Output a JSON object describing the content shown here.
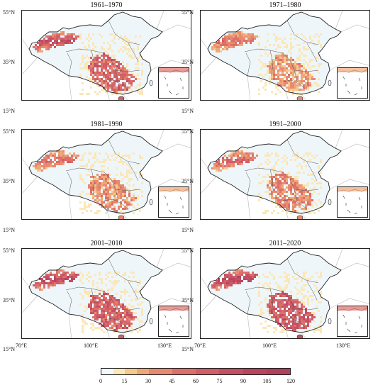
{
  "panels": [
    {
      "title": "1961–1970",
      "level": 0.75
    },
    {
      "title": "1971–1980",
      "level": 0.45
    },
    {
      "title": "1981–1990",
      "level": 0.5
    },
    {
      "title": "1991–2000",
      "level": 0.55
    },
    {
      "title": "2001–2010",
      "level": 0.8
    },
    {
      "title": "2011–2020",
      "level": 0.85
    }
  ],
  "lat_labels": [
    "55°N",
    "35°N",
    "15°N"
  ],
  "lon_labels": [
    "70°E",
    "100°E",
    "130°E"
  ],
  "legend": {
    "ticks": [
      "0",
      "15",
      "30",
      "45",
      "60",
      "75",
      "90",
      "105",
      "120"
    ],
    "colors": [
      "#f2f8fb",
      "#fbe7b8",
      "#f6c98d",
      "#f0a778",
      "#e88a6f",
      "#dd6f6a",
      "#d05e68",
      "#c24f63",
      "#b8445e",
      "#b0405c"
    ],
    "stops": [
      0,
      7.5,
      15,
      22.5,
      30,
      45,
      60,
      75,
      90,
      105,
      120
    ]
  }
}
